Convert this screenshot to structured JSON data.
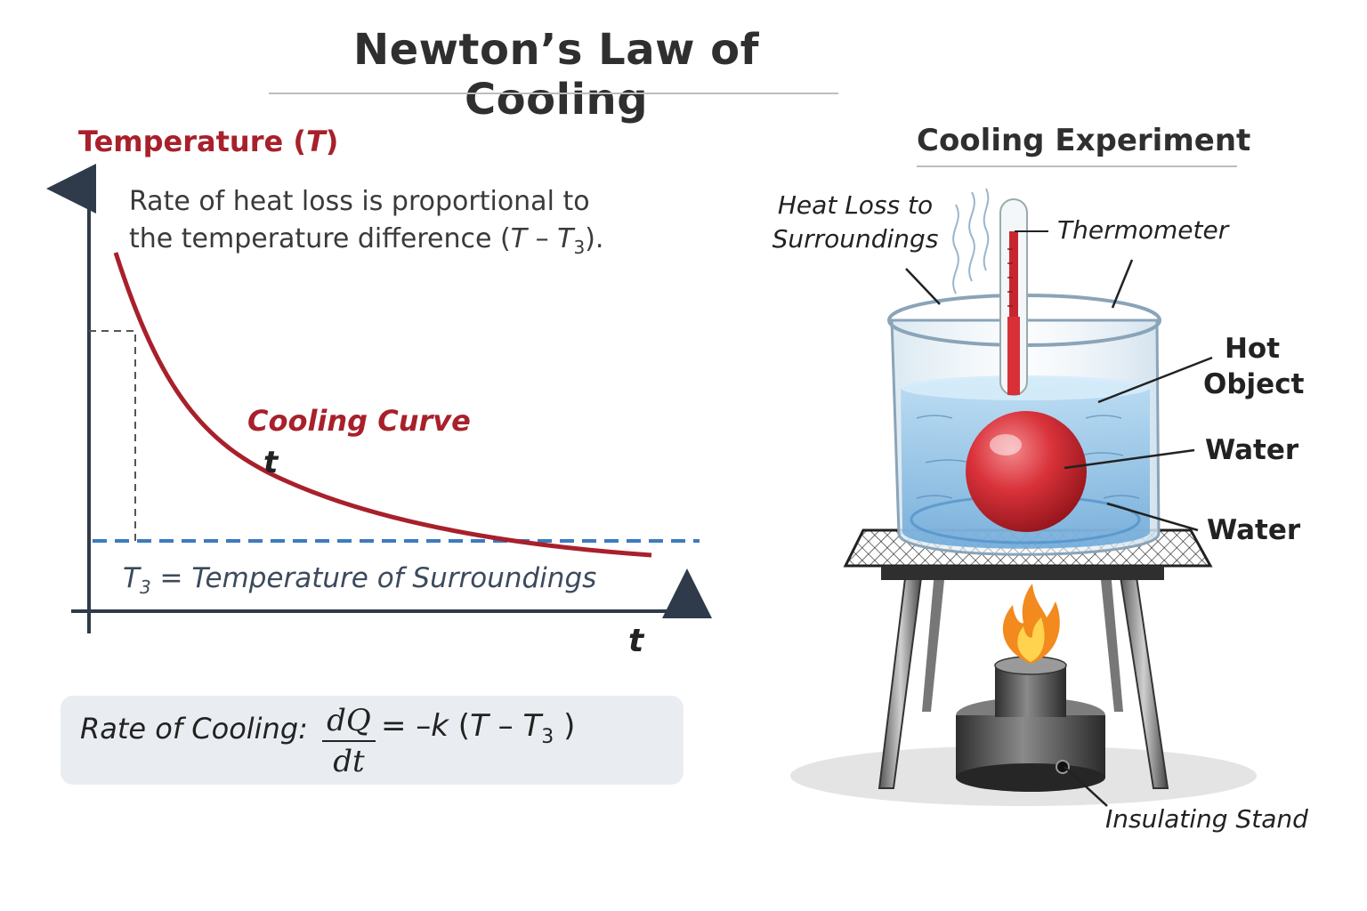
{
  "header": {
    "title": "Newton’s Law of Cooling"
  },
  "graph": {
    "y_axis_label_prefix": "Temperature (",
    "y_axis_symbol": "T",
    "y_axis_label_suffix": ")",
    "statement_line1": "Rate of heat loss is proportional to",
    "statement_line2_prefix": "the temperature difference (",
    "statement_T": "T",
    "statement_minus": " – ",
    "statement_Ts": "T",
    "statement_sub": "3",
    "statement_line2_suffix": ").",
    "curve_label": "Cooling Curve",
    "curve_t": "t",
    "surroundings_symbol": "T",
    "surroundings_sub": "3",
    "surroundings_text": " = Temperature of Surroundings",
    "x_axis_label": "t"
  },
  "formula": {
    "label": "Rate of Cooling:",
    "numerator": "dQ",
    "denominator": "dt",
    "rhs_prefix": "= –",
    "k": "k",
    "open": " (",
    "T": "T",
    "minus": " – ",
    "Ts": "T",
    "sub": "3",
    "close": " )"
  },
  "experiment": {
    "title": "Cooling Experiment",
    "heat_loss_line1": "Heat Loss to",
    "heat_loss_line2": "Surroundings",
    "thermometer": "Thermometer",
    "hot_line1": "Hot",
    "hot_line2": "Object",
    "water_1": "Water",
    "water_2": "Water",
    "stand": "Insulating Stand"
  },
  "colors": {
    "curve": "#a8202b",
    "surroundings_line": "#3d7bbf",
    "axis": "#2f3a4a",
    "water": "#8fc0e6",
    "ball": "#d9323a",
    "flame": "#f28a1e"
  }
}
